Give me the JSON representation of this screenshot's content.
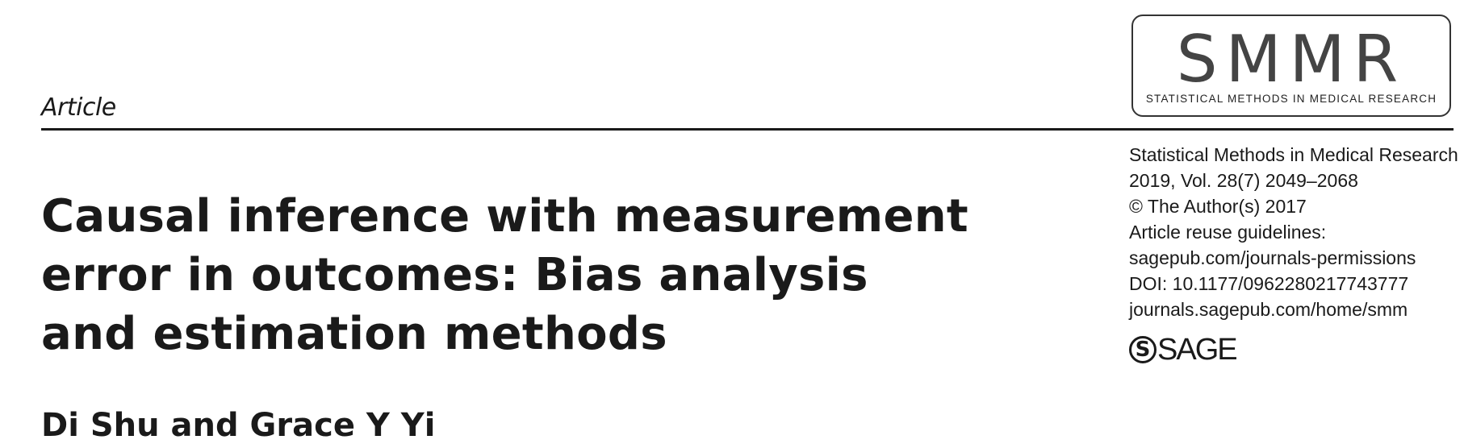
{
  "header": {
    "section_label": "Article"
  },
  "journal_logo": {
    "abbreviation": "SMMR",
    "full_name": "STATISTICAL METHODS IN MEDICAL RESEARCH"
  },
  "title": {
    "lines": [
      "Causal inference with measurement",
      "error in outcomes: Bias analysis",
      "and estimation methods"
    ]
  },
  "authors": "Di Shu and Grace Y Yi",
  "meta": {
    "journal": "Statistical Methods in Medical Research",
    "volume": "2019, Vol. 28(7) 2049–2068",
    "copyright": "© The Author(s) 2017",
    "reuse_label": "Article reuse guidelines:",
    "permissions": "sagepub.com/journals-permissions",
    "doi": "DOI: 10.1177/0962280217743777",
    "homepage": "journals.sagepub.com/home/smm"
  },
  "publisher_logo": {
    "mark": "S",
    "text": "SAGE"
  }
}
